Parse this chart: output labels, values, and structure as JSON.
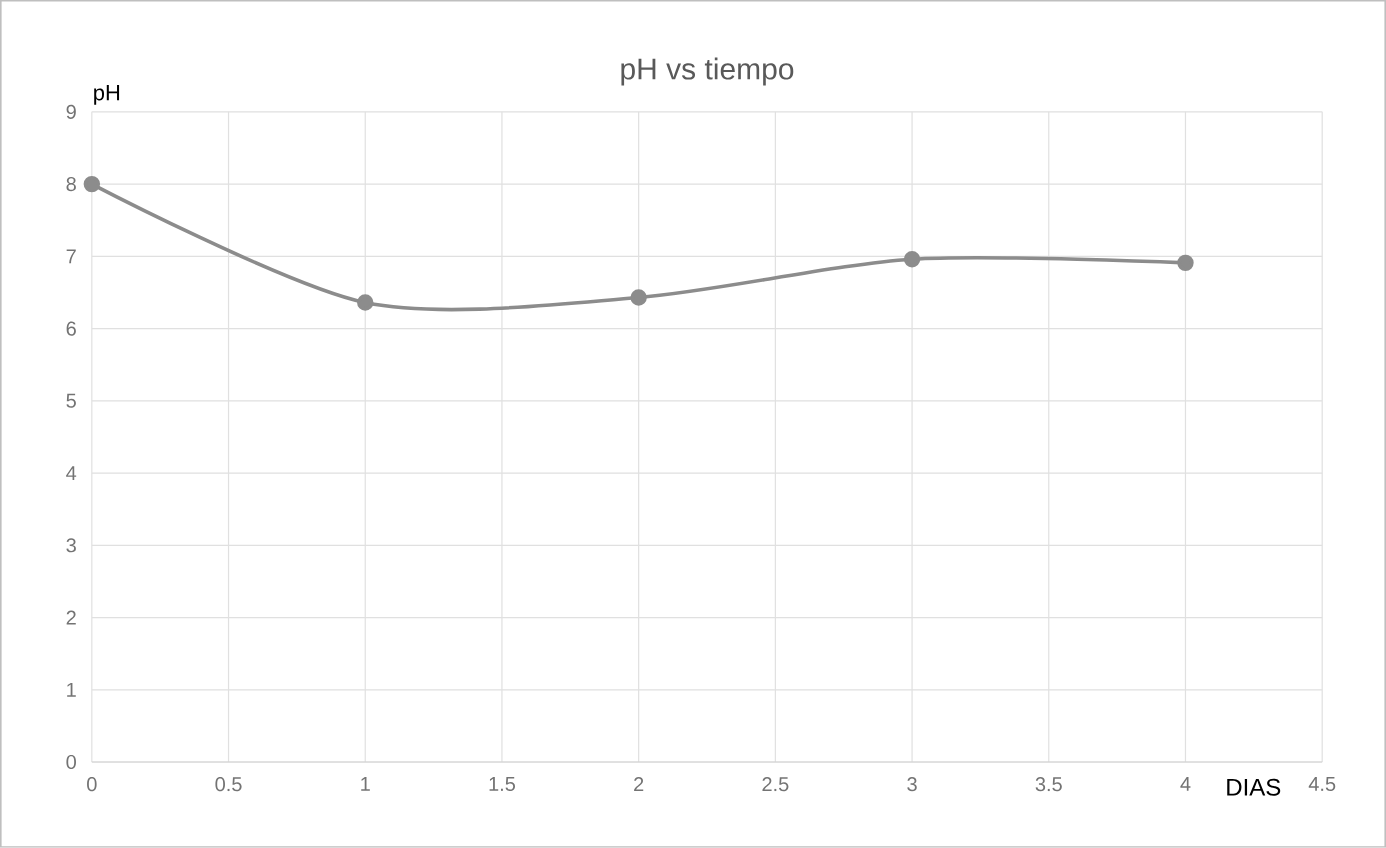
{
  "chart_data": {
    "type": "line",
    "title": "pH vs  tiempo",
    "xlabel": "DIAS",
    "ylabel": "pH",
    "x": [
      0,
      1,
      2,
      3,
      4
    ],
    "series": [
      {
        "color": "#8c8c8c",
        "values": [
          8,
          6.36,
          6.43,
          6.96,
          6.91
        ]
      }
    ],
    "xlim": [
      0,
      4.5
    ],
    "xticks": [
      0,
      0.5,
      1,
      1.5,
      2,
      2.5,
      3,
      3.5,
      4,
      4.5
    ],
    "ylim": [
      0,
      9
    ],
    "yticks": [
      0,
      1,
      2,
      3,
      4,
      5,
      6,
      7,
      8,
      9
    ],
    "grid": true,
    "marker": "circle",
    "line_style": "solid"
  }
}
